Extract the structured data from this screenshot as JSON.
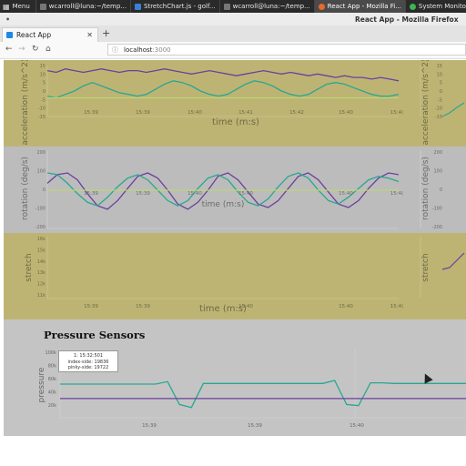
{
  "taskbar": {
    "menu_label": "Menu",
    "tasks": [
      {
        "label": "wcarroll@luna:~/temp...",
        "icon": "terminal-icon"
      },
      {
        "label": "StretchChart.js - golf...",
        "icon": "editor-icon"
      },
      {
        "label": "wcarroll@luna:~/temp...",
        "icon": "terminal-icon"
      },
      {
        "label": "React App - Mozilla Fi...",
        "icon": "firefox-icon"
      },
      {
        "label": "System Monitor",
        "icon": "system-monitor-icon"
      }
    ]
  },
  "window": {
    "title": "React App - Mozilla Firefox"
  },
  "browser": {
    "tab_title": "React App",
    "url_host": "localhost",
    "url_port": ":3000"
  },
  "charts": {
    "acceleration": {
      "ylabel": "acceleration (m/s^2)",
      "xlabel": "time (m:s)",
      "yticks": [
        "15",
        "10",
        "5",
        "0",
        "-5",
        "-10",
        "-15"
      ],
      "xticks": [
        "15:39",
        "15:39",
        "15:40",
        "15:41",
        "15:42",
        "15:40",
        "15:4("
      ]
    },
    "rotation": {
      "ylabel": "rotation (deg/s)",
      "xlabel": "time (m:s)",
      "yticks": [
        "200",
        "100",
        "0",
        "-100",
        "-200"
      ],
      "xticks": [
        "15:39",
        "15:39",
        "15:40",
        "15:40",
        "15:40",
        "15:4("
      ]
    },
    "stretch": {
      "ylabel": "stretch",
      "xlabel": "time (m:s)",
      "yticks": [
        "16k",
        "15k",
        "14k",
        "13k",
        "12k",
        "11k"
      ],
      "xticks": [
        "15:39",
        "15:39",
        "15:40",
        "15:40",
        "15:4("
      ]
    },
    "pressure": {
      "title": "Pressure Sensors",
      "ylabel": "pressure",
      "yticks": [
        "100k",
        "80k",
        "60k",
        "40k",
        "20k"
      ],
      "xticks": [
        "15:39",
        "15:39",
        "15:40"
      ],
      "tooltip": {
        "time": "1: 15:32:501",
        "index": "index-side: 19836",
        "pinky": "pinky-side: 19722"
      }
    }
  },
  "chart_data": [
    {
      "type": "line",
      "ylabel": "acceleration (m/s^2)",
      "xlabel": "time (m:s)",
      "ylim": [
        -15,
        15
      ],
      "series": [
        {
          "color": "#6b3fa0",
          "values": [
            12,
            11,
            13,
            12,
            11,
            12,
            13,
            12,
            11,
            12,
            12,
            11,
            12,
            13,
            12,
            11,
            10,
            11,
            12,
            11,
            10,
            9,
            10,
            11,
            12,
            11,
            10,
            11,
            10,
            9,
            10,
            9,
            8,
            9,
            8,
            8,
            7,
            8,
            7,
            6
          ]
        },
        {
          "color": "#2aa692",
          "values": [
            -3,
            -4,
            -2,
            0,
            3,
            5,
            3,
            1,
            -1,
            -2,
            -3,
            -2,
            1,
            4,
            6,
            5,
            3,
            0,
            -2,
            -3,
            -2,
            1,
            4,
            6,
            5,
            3,
            0,
            -2,
            -3,
            -2,
            1,
            4,
            5,
            4,
            2,
            0,
            -2,
            -3,
            -3,
            -2
          ]
        },
        {
          "color": "#bcd676",
          "values": [
            -4,
            -4,
            -4,
            -4,
            -4,
            -4,
            -4,
            -4,
            -4,
            -4,
            -4,
            -4,
            -4,
            -4,
            -4,
            -4,
            -4,
            -4,
            -4,
            -4,
            -4,
            -4,
            -4,
            -4,
            -4,
            -4,
            -4,
            -4,
            -4,
            -4,
            -4,
            -4,
            -4,
            -4,
            -4,
            -4,
            -4,
            -4,
            -4,
            -4
          ]
        }
      ]
    },
    {
      "type": "line",
      "ylabel": "rotation (deg/s)",
      "xlabel": "time (m:s)",
      "ylim": [
        -200,
        200
      ],
      "series": [
        {
          "color": "#6b3fa0",
          "values": [
            40,
            90,
            100,
            60,
            -20,
            -90,
            -110,
            -60,
            10,
            80,
            100,
            70,
            0,
            -80,
            -110,
            -70,
            0,
            80,
            100,
            60,
            -10,
            -80,
            -100,
            -60,
            10,
            80,
            100,
            60,
            -10,
            -80,
            -100,
            -60,
            10,
            70,
            100,
            90
          ]
        },
        {
          "color": "#2aa692",
          "values": [
            100,
            90,
            40,
            -20,
            -70,
            -90,
            -40,
            20,
            70,
            90,
            60,
            0,
            -60,
            -90,
            -60,
            10,
            70,
            90,
            60,
            -10,
            -70,
            -90,
            -50,
            20,
            80,
            100,
            70,
            0,
            -60,
            -80,
            -40,
            10,
            60,
            80,
            70,
            50
          ]
        },
        {
          "color": "#bcd676",
          "values": [
            0,
            0,
            0,
            0,
            0,
            0,
            0,
            0,
            0,
            0,
            0,
            0,
            0,
            0,
            0,
            0,
            0,
            0,
            0,
            0,
            0,
            0,
            0,
            0,
            0,
            0,
            0,
            0,
            0,
            0,
            0,
            0,
            0,
            0,
            0,
            0
          ]
        }
      ]
    },
    {
      "type": "line",
      "ylabel": "stretch",
      "xlabel": "time (m:s)",
      "ylim": [
        11000,
        16000
      ],
      "series": []
    },
    {
      "type": "line",
      "title": "Pressure Sensors",
      "ylabel": "pressure",
      "ylim": [
        0,
        100000
      ],
      "series": [
        {
          "color": "#2aa692",
          "values": [
            44000,
            44000,
            44000,
            44000,
            44000,
            44000,
            44000,
            44000,
            44000,
            48000,
            10000,
            5000,
            45000,
            45000,
            45000,
            45000,
            45000,
            45000,
            45000,
            45000,
            45000,
            45000,
            45000,
            50000,
            10000,
            8000,
            46000,
            46000,
            45000,
            45000,
            45000,
            45000,
            45000,
            45000,
            45000
          ]
        },
        {
          "color": "#6b3fa0",
          "values": [
            19800,
            19800,
            19800,
            19800,
            19800,
            19800,
            19800,
            19800,
            19800,
            19800,
            19800,
            19800,
            19800,
            19800,
            19800,
            19800,
            19800,
            19800,
            19800,
            19800,
            19800,
            19800,
            19800,
            19800,
            19800,
            19800,
            19800,
            19800,
            19800,
            19800,
            19800,
            19800,
            19800,
            19800,
            19800
          ]
        }
      ]
    }
  ]
}
